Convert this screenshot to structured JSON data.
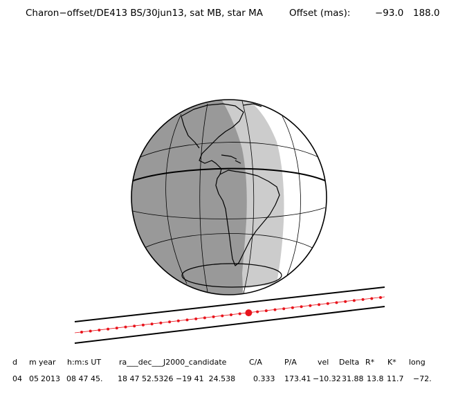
{
  "header": {
    "title": "Charon−offset/DE413 BS/30jun13, sat MB, star MA",
    "offset_label": "Offset (mas):",
    "offset_x": "−93.0",
    "offset_y": "188.0"
  },
  "table": {
    "columns": [
      "d",
      "m",
      "year",
      "h:m:s UT",
      "ra___dec___J2000_candidate",
      "C/A",
      "P/A",
      "vel",
      "Delta",
      "R*",
      "K*",
      "long"
    ],
    "values": [
      "04",
      "05",
      "2013",
      "08 47 45.",
      "18 47 52.5326 −19 41  24.538",
      "0.333",
      "173.41",
      "−10.32",
      "31.88",
      "13.8",
      "11.7",
      "−72."
    ]
  },
  "colors": {
    "night_shadow": "#999999",
    "twilight": "#cccccc",
    "day": "#ffffff",
    "track_dots": "#e8141c",
    "lines": "#000000"
  }
}
